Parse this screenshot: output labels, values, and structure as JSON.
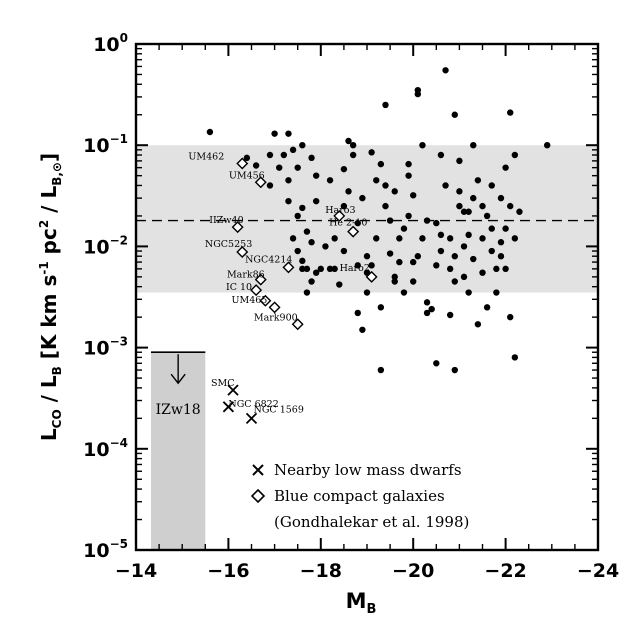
{
  "chart_data": {
    "type": "scatter",
    "xlabel_main": "M",
    "xlabel_sub": "B",
    "ylabel": "L_CO / L_B [K km s^-1 pc^2 / L_B,sun]",
    "xlim": [
      -14,
      -24
    ],
    "ylim": [
      1e-05,
      1
    ],
    "y_scale": "log",
    "x_ticks": [
      "−14",
      "−16",
      "−18",
      "−20",
      "−22",
      "−24"
    ],
    "y_ticks": [
      {
        "base": "10",
        "exp": "−5"
      },
      {
        "base": "10",
        "exp": "−4"
      },
      {
        "base": "10",
        "exp": "−3"
      },
      {
        "base": "10",
        "exp": "−2"
      },
      {
        "base": "10",
        "exp": "−1"
      },
      {
        "base": "10",
        "exp": "0"
      }
    ],
    "shaded_band": {
      "y_low": 0.0035,
      "y_high": 0.1
    },
    "dashed_line_y": 0.018,
    "upper_limit": {
      "label": "IZw18",
      "x_range": [
        -14,
        -15.5
      ],
      "y_value": 0.0009
    },
    "series": [
      {
        "name": "Nearby low mass dwarfs",
        "marker": "x",
        "points": [
          {
            "label": "SMC",
            "x": -16.1,
            "y": 0.00038
          },
          {
            "label": "NGC 6822",
            "x": -16.0,
            "y": 0.00026
          },
          {
            "label": "NGC 1569",
            "x": -16.5,
            "y": 0.0002
          }
        ]
      },
      {
        "name": "Blue compact galaxies",
        "marker": "diamond",
        "points": [
          {
            "label": "UM462",
            "x": -16.3,
            "y": 0.066
          },
          {
            "label": "UM456",
            "x": -16.7,
            "y": 0.043
          },
          {
            "label": "IIZw40",
            "x": -16.2,
            "y": 0.0155
          },
          {
            "label": "NGC5253",
            "x": -16.3,
            "y": 0.0088
          },
          {
            "label": "NGC4214",
            "x": -17.3,
            "y": 0.0062
          },
          {
            "label": "Mark86",
            "x": -16.7,
            "y": 0.0047
          },
          {
            "label": "IC 10",
            "x": -16.6,
            "y": 0.0037
          },
          {
            "label": "UM465",
            "x": -16.8,
            "y": 0.0029
          },
          {
            "label": "Mark900",
            "x": -17.5,
            "y": 0.0017
          },
          {
            "label": "Haro3",
            "x": -18.4,
            "y": 0.02
          },
          {
            "label": "He 2-10",
            "x": -18.7,
            "y": 0.014
          },
          {
            "label": "Haro2",
            "x": -19.1,
            "y": 0.005
          },
          {
            "label": "",
            "x": -17.0,
            "y": 0.0025
          }
        ]
      },
      {
        "name": "",
        "marker": "filled-circle",
        "points": [
          [
            -15.6,
            0.135
          ],
          [
            -16.4,
            0.075
          ],
          [
            -16.6,
            0.063
          ],
          [
            -16.9,
            0.08
          ],
          [
            -16.9,
            0.04
          ],
          [
            -17.0,
            0.13
          ],
          [
            -17.1,
            0.06
          ],
          [
            -17.2,
            0.08
          ],
          [
            -17.3,
            0.045
          ],
          [
            -17.3,
            0.028
          ],
          [
            -17.4,
            0.09
          ],
          [
            -17.5,
            0.06
          ],
          [
            -17.6,
            0.1
          ],
          [
            -17.5,
            0.02
          ],
          [
            -17.6,
            0.024
          ],
          [
            -17.7,
            0.014
          ],
          [
            -17.8,
            0.011
          ],
          [
            -17.7,
            0.006
          ],
          [
            -17.8,
            0.0045
          ],
          [
            -17.7,
            0.0035
          ],
          [
            -17.9,
            0.05
          ],
          [
            -17.8,
            0.075
          ],
          [
            -17.3,
            0.13
          ],
          [
            -17.4,
            0.012
          ],
          [
            -17.5,
            0.009
          ],
          [
            -17.6,
            0.0072
          ],
          [
            -18.1,
            0.01
          ],
          [
            -18.0,
            0.006
          ],
          [
            -17.9,
            0.028
          ],
          [
            -18.2,
            0.045
          ],
          [
            -18.2,
            0.006
          ],
          [
            -18.3,
            0.012
          ],
          [
            -18.3,
            0.006
          ],
          [
            -18.4,
            0.0042
          ],
          [
            -18.5,
            0.058
          ],
          [
            -18.5,
            0.025
          ],
          [
            -18.6,
            0.11
          ],
          [
            -18.6,
            0.035
          ],
          [
            -18.7,
            0.08
          ],
          [
            -18.7,
            0.1
          ],
          [
            -18.8,
            0.0065
          ],
          [
            -18.9,
            0.03
          ],
          [
            -19.0,
            0.0055
          ],
          [
            -18.8,
            0.0022
          ],
          [
            -18.9,
            0.0015
          ],
          [
            -19.0,
            0.0035
          ],
          [
            -19.1,
            0.0065
          ],
          [
            -19.1,
            0.085
          ],
          [
            -19.2,
            0.045
          ],
          [
            -19.2,
            0.012
          ],
          [
            -19.3,
            0.0025
          ],
          [
            -19.3,
            0.0006
          ],
          [
            -19.4,
            0.04
          ],
          [
            -19.4,
            0.25
          ],
          [
            -19.5,
            0.0085
          ],
          [
            -19.5,
            0.018
          ],
          [
            -19.6,
            0.035
          ],
          [
            -19.6,
            0.0045
          ],
          [
            -19.7,
            0.012
          ],
          [
            -19.8,
            0.015
          ],
          [
            -19.8,
            0.0035
          ],
          [
            -19.9,
            0.05
          ],
          [
            -19.9,
            0.02
          ],
          [
            -20.0,
            0.007
          ],
          [
            -20.0,
            0.0045
          ],
          [
            -20.1,
            0.008
          ],
          [
            -20.1,
            0.35
          ],
          [
            -20.1,
            0.32
          ],
          [
            -20.2,
            0.1
          ],
          [
            -20.2,
            0.012
          ],
          [
            -20.3,
            0.0022
          ],
          [
            -20.4,
            0.0024
          ],
          [
            -20.5,
            0.0065
          ],
          [
            -20.5,
            0.0007
          ],
          [
            -20.6,
            0.009
          ],
          [
            -20.6,
            0.013
          ],
          [
            -20.6,
            0.08
          ],
          [
            -20.7,
            0.55
          ],
          [
            -20.7,
            0.04
          ],
          [
            -20.8,
            0.006
          ],
          [
            -20.8,
            0.0021
          ],
          [
            -20.9,
            0.2
          ],
          [
            -20.9,
            0.008
          ],
          [
            -20.9,
            0.0006
          ],
          [
            -21.0,
            0.07
          ],
          [
            -21.0,
            0.035
          ],
          [
            -21.0,
            0.025
          ],
          [
            -21.1,
            0.01
          ],
          [
            -21.1,
            0.005
          ],
          [
            -21.2,
            0.022
          ],
          [
            -21.2,
            0.013
          ],
          [
            -21.2,
            0.0035
          ],
          [
            -21.3,
            0.1
          ],
          [
            -21.3,
            0.03
          ],
          [
            -21.3,
            0.0075
          ],
          [
            -21.4,
            0.0017
          ],
          [
            -21.4,
            0.045
          ],
          [
            -21.5,
            0.012
          ],
          [
            -21.5,
            0.0055
          ],
          [
            -21.6,
            0.02
          ],
          [
            -21.6,
            0.0025
          ],
          [
            -21.7,
            0.015
          ],
          [
            -21.7,
            0.04
          ],
          [
            -21.8,
            0.006
          ],
          [
            -21.8,
            0.0035
          ],
          [
            -21.9,
            0.03
          ],
          [
            -21.9,
            0.011
          ],
          [
            -21.9,
            0.008
          ],
          [
            -22.0,
            0.015
          ],
          [
            -22.0,
            0.06
          ],
          [
            -22.0,
            0.006
          ],
          [
            -22.1,
            0.21
          ],
          [
            -22.1,
            0.025
          ],
          [
            -22.1,
            0.002
          ],
          [
            -22.2,
            0.08
          ],
          [
            -22.2,
            0.012
          ],
          [
            -22.2,
            0.0008
          ],
          [
            -22.3,
            0.022
          ],
          [
            -22.9,
            0.1
          ],
          [
            -20.3,
            0.0028
          ],
          [
            -20.5,
            0.017
          ],
          [
            -20.8,
            0.012
          ],
          [
            -20.9,
            0.0045
          ],
          [
            -21.1,
            0.022
          ],
          [
            -19.4,
            0.025
          ],
          [
            -19.7,
            0.007
          ],
          [
            -20.0,
            0.032
          ],
          [
            -20.3,
            0.018
          ],
          [
            -18.5,
            0.009
          ],
          [
            -18.8,
            0.017
          ],
          [
            -19.0,
            0.008
          ],
          [
            -17.6,
            0.006
          ],
          [
            -17.9,
            0.0055
          ],
          [
            -19.3,
            0.065
          ],
          [
            -19.9,
            0.065
          ],
          [
            -21.5,
            0.025
          ],
          [
            -21.7,
            0.009
          ],
          [
            -19.6,
            0.005
          ]
        ]
      }
    ],
    "legend": {
      "entries": [
        {
          "marker": "x",
          "label": "Nearby low mass dwarfs"
        },
        {
          "marker": "diamond",
          "label": "Blue compact galaxies"
        }
      ],
      "citation": "(Gondhalekar et al. 1998)",
      "placement": "bottom-right"
    }
  }
}
